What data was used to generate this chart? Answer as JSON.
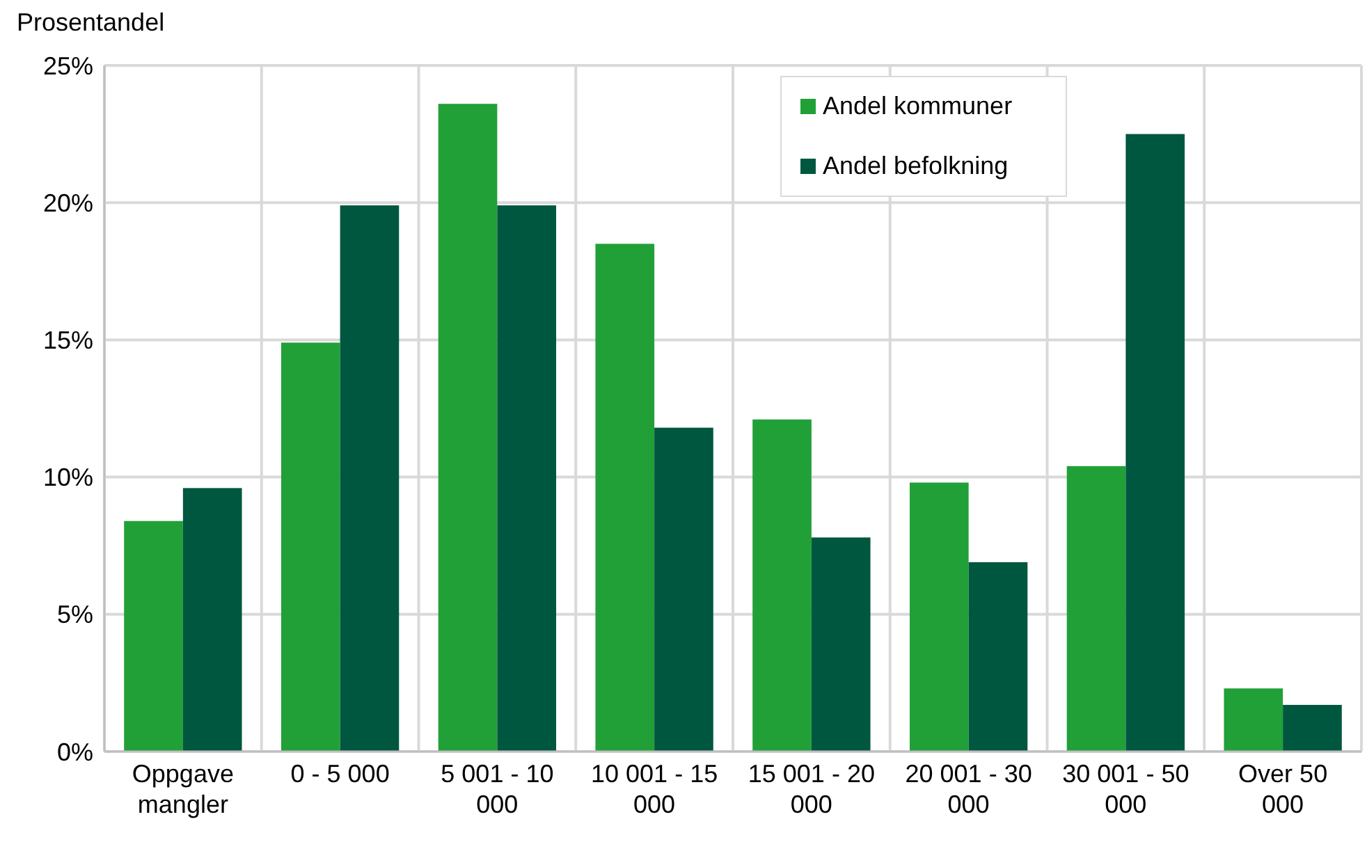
{
  "chart_data": {
    "type": "bar",
    "ylabel": "Prosentandel",
    "categories": [
      "Oppgave mangler",
      "0 - 5 000",
      "5 001 - 10 000",
      "10 001 - 15 000",
      "15 001 - 20 000",
      "20 001 - 30 000",
      "30 001 - 50 000",
      "Over 50 000"
    ],
    "series": [
      {
        "name": "Andel kommuner",
        "color": "#21a038",
        "values": [
          8.4,
          14.9,
          23.6,
          18.5,
          12.1,
          9.8,
          10.4,
          2.3
        ]
      },
      {
        "name": "Andel befolkning",
        "color": "#00573f",
        "values": [
          9.6,
          19.9,
          19.9,
          11.8,
          7.8,
          6.9,
          22.5,
          1.7
        ]
      }
    ],
    "ylim": [
      0,
      25
    ],
    "yticks": [
      {
        "value": 0,
        "label": "0%"
      },
      {
        "value": 5,
        "label": "5%"
      },
      {
        "value": 10,
        "label": "10%"
      },
      {
        "value": 15,
        "label": "15%"
      },
      {
        "value": 20,
        "label": "20%"
      },
      {
        "value": 25,
        "label": "25%"
      }
    ],
    "grid": true,
    "legend": "top right"
  }
}
